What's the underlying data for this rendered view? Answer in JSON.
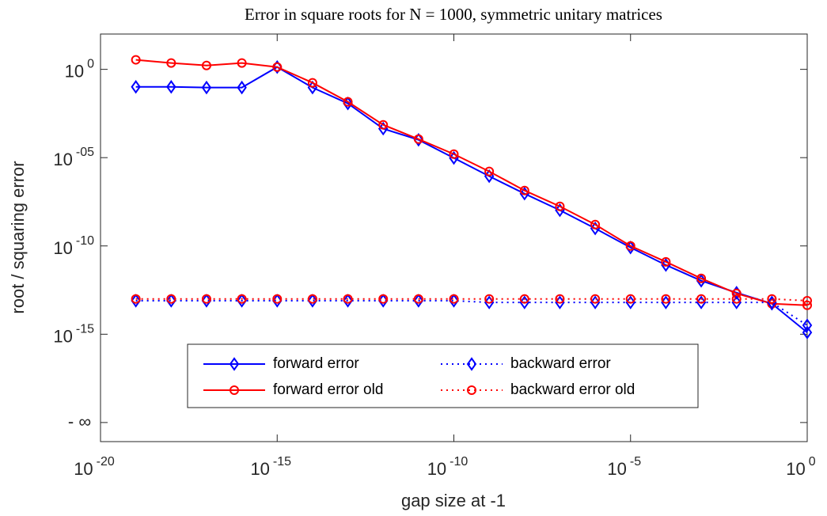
{
  "chart_data": {
    "type": "line",
    "title": "Error in square roots for N = 1000, symmetric unitary matrices",
    "xlabel": "gap size at -1",
    "ylabel": "root / squaring error",
    "xscale": "log",
    "yscale": "log",
    "grid": false,
    "legend": "lower center",
    "x": [
      1e-19,
      1e-18,
      1e-17,
      1e-16,
      1e-15,
      1e-14,
      1e-13,
      1e-12,
      1e-11,
      1e-10,
      1e-09,
      1e-08,
      1e-07,
      1e-06,
      1e-05,
      0.0001,
      0.001,
      0.01,
      0.1,
      1
    ],
    "xlim": [
      1e-20,
      1
    ],
    "xticks": [
      {
        "value": 1e-20,
        "label": "10",
        "exponent": "-20"
      },
      {
        "value": 1e-15,
        "label": "10",
        "exponent": "-15"
      },
      {
        "value": 1e-10,
        "label": "10",
        "exponent": "-10"
      },
      {
        "value": 1e-05,
        "label": "10",
        "exponent": "-5"
      },
      {
        "value": 1,
        "label": "10",
        "exponent": "0"
      }
    ],
    "ylim": [
      8.3e-22,
      100
    ],
    "yticks": [
      {
        "value": 1,
        "label": "10",
        "exponent": "0"
      },
      {
        "value": 1e-05,
        "label": "10",
        "exponent": "-05"
      },
      {
        "value": 1e-10,
        "label": "10",
        "exponent": "-10"
      },
      {
        "value": 1e-15,
        "label": "10",
        "exponent": "-15"
      },
      {
        "value": 1e-20,
        "label": "- ∞"
      }
    ],
    "series": [
      {
        "name": "forward error",
        "color": "#0000ff",
        "marker": "diamond",
        "linestyle": "solid",
        "values": [
          0.102,
          0.102,
          0.0933,
          0.0933,
          1.35,
          0.0933,
          0.0117,
          0.000437,
          0.000102,
          9.55e-06,
          8.91e-07,
          9.12e-08,
          1.05e-08,
          9.77e-10,
          8.13e-11,
          8.32e-12,
          1.07e-12,
          2.24e-13,
          5.37e-14,
          1.26e-15
        ]
      },
      {
        "name": "forward error old",
        "color": "#ff0000",
        "marker": "circle",
        "linestyle": "solid",
        "values": [
          3.47,
          2.29,
          1.66,
          2.29,
          1.35,
          0.174,
          0.0145,
          0.000724,
          0.000112,
          1.58e-05,
          1.66e-06,
          1.38e-07,
          1.74e-08,
          1.62e-09,
          1e-10,
          1.26e-11,
          1.45e-12,
          2.04e-13,
          5.37e-14,
          4.37e-14
        ]
      },
      {
        "name": "backward error",
        "color": "#0000ff",
        "marker": "diamond",
        "linestyle": "dotted",
        "values": [
          7.9e-14,
          7.9e-14,
          7.9e-14,
          7.9e-14,
          7.9e-14,
          7.9e-14,
          7.9e-14,
          7.9e-14,
          7.9e-14,
          7.9e-14,
          6.3e-14,
          6.3e-14,
          6.3e-14,
          6.3e-14,
          6.3e-14,
          6.3e-14,
          6.3e-14,
          6.3e-14,
          6.3e-14,
          3.2e-15
        ]
      },
      {
        "name": "backward error old",
        "color": "#ff0000",
        "marker": "circle",
        "linestyle": "dotted",
        "values": [
          1e-13,
          1e-13,
          1e-13,
          1e-13,
          1e-13,
          1e-13,
          1e-13,
          1e-13,
          1e-13,
          1e-13,
          1e-13,
          1e-13,
          1e-13,
          1e-13,
          1e-13,
          1e-13,
          1e-13,
          1e-13,
          1e-13,
          7.9e-14
        ]
      }
    ]
  }
}
